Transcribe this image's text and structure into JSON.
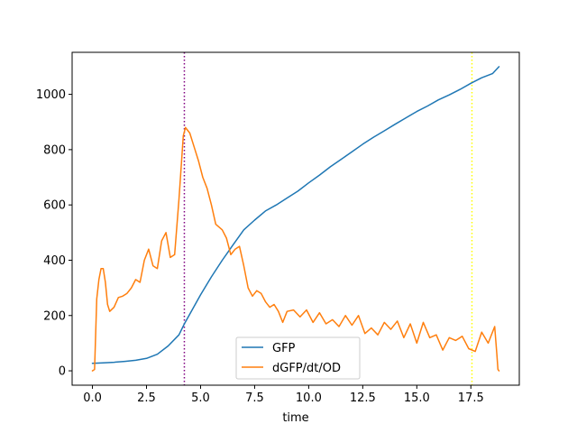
{
  "chart_data": {
    "type": "line",
    "title": "",
    "xlabel": "time",
    "ylabel": "",
    "xlim": [
      -0.94,
      19.74
    ],
    "ylim": [
      -52,
      1152
    ],
    "xticks": [
      0.0,
      2.5,
      5.0,
      7.5,
      10.0,
      12.5,
      15.0,
      17.5
    ],
    "xtick_labels": [
      "0.0",
      "2.5",
      "5.0",
      "7.5",
      "10.0",
      "12.5",
      "15.0",
      "17.5"
    ],
    "yticks": [
      0,
      200,
      400,
      600,
      800,
      1000
    ],
    "ytick_labels": [
      "0",
      "200",
      "400",
      "600",
      "800",
      "1000"
    ],
    "grid": false,
    "legend": {
      "position": "lower-center",
      "entries": [
        "GFP",
        "dGFP/dt/OD"
      ]
    },
    "vlines": [
      {
        "x": 4.25,
        "color": "#800080",
        "style": "dotted"
      },
      {
        "x": 17.55,
        "color": "#ffff00",
        "style": "dotted"
      }
    ],
    "series": [
      {
        "name": "GFP",
        "color": "#1f77b4",
        "x": [
          0.0,
          0.5,
          1.0,
          1.5,
          2.0,
          2.5,
          3.0,
          3.5,
          4.0,
          4.25,
          4.5,
          5.0,
          5.5,
          6.0,
          6.5,
          7.0,
          7.5,
          8.0,
          8.5,
          9.0,
          9.5,
          10.0,
          10.5,
          11.0,
          11.5,
          12.0,
          12.5,
          13.0,
          13.5,
          14.0,
          14.5,
          15.0,
          15.5,
          16.0,
          16.5,
          17.0,
          17.5,
          18.0,
          18.5,
          18.8
        ],
        "y": [
          27,
          29,
          31,
          34,
          38,
          45,
          60,
          90,
          130,
          170,
          205,
          275,
          340,
          400,
          455,
          510,
          545,
          578,
          600,
          625,
          650,
          680,
          708,
          738,
          765,
          792,
          820,
          845,
          868,
          892,
          915,
          938,
          958,
          980,
          998,
          1018,
          1040,
          1060,
          1075,
          1100
        ]
      },
      {
        "name": "dGFP/dt/OD",
        "color": "#ff7f0e",
        "x": [
          0.0,
          0.1,
          0.2,
          0.3,
          0.4,
          0.5,
          0.6,
          0.7,
          0.8,
          1.0,
          1.2,
          1.4,
          1.6,
          1.8,
          2.0,
          2.2,
          2.4,
          2.6,
          2.8,
          3.0,
          3.2,
          3.4,
          3.6,
          3.8,
          4.0,
          4.2,
          4.3,
          4.5,
          4.7,
          4.9,
          5.1,
          5.3,
          5.5,
          5.7,
          6.0,
          6.2,
          6.4,
          6.6,
          6.8,
          7.0,
          7.2,
          7.4,
          7.6,
          7.8,
          8.0,
          8.2,
          8.4,
          8.6,
          8.8,
          9.0,
          9.3,
          9.6,
          9.9,
          10.2,
          10.5,
          10.8,
          11.1,
          11.4,
          11.7,
          12.0,
          12.3,
          12.6,
          12.9,
          13.2,
          13.5,
          13.8,
          14.1,
          14.4,
          14.7,
          15.0,
          15.3,
          15.6,
          15.9,
          16.2,
          16.5,
          16.8,
          17.1,
          17.4,
          17.7,
          18.0,
          18.3,
          18.6,
          18.7,
          18.75,
          18.8
        ],
        "y": [
          0,
          5,
          260,
          330,
          370,
          370,
          320,
          240,
          215,
          230,
          265,
          270,
          280,
          300,
          330,
          320,
          400,
          440,
          380,
          370,
          470,
          500,
          410,
          420,
          620,
          850,
          880,
          860,
          810,
          760,
          700,
          660,
          600,
          530,
          510,
          480,
          420,
          440,
          450,
          380,
          300,
          270,
          290,
          280,
          250,
          230,
          240,
          215,
          175,
          215,
          220,
          195,
          220,
          175,
          210,
          170,
          185,
          160,
          200,
          165,
          200,
          135,
          155,
          130,
          175,
          150,
          180,
          120,
          170,
          100,
          175,
          120,
          130,
          75,
          120,
          110,
          125,
          80,
          70,
          140,
          100,
          160,
          60,
          5,
          0
        ]
      }
    ]
  }
}
